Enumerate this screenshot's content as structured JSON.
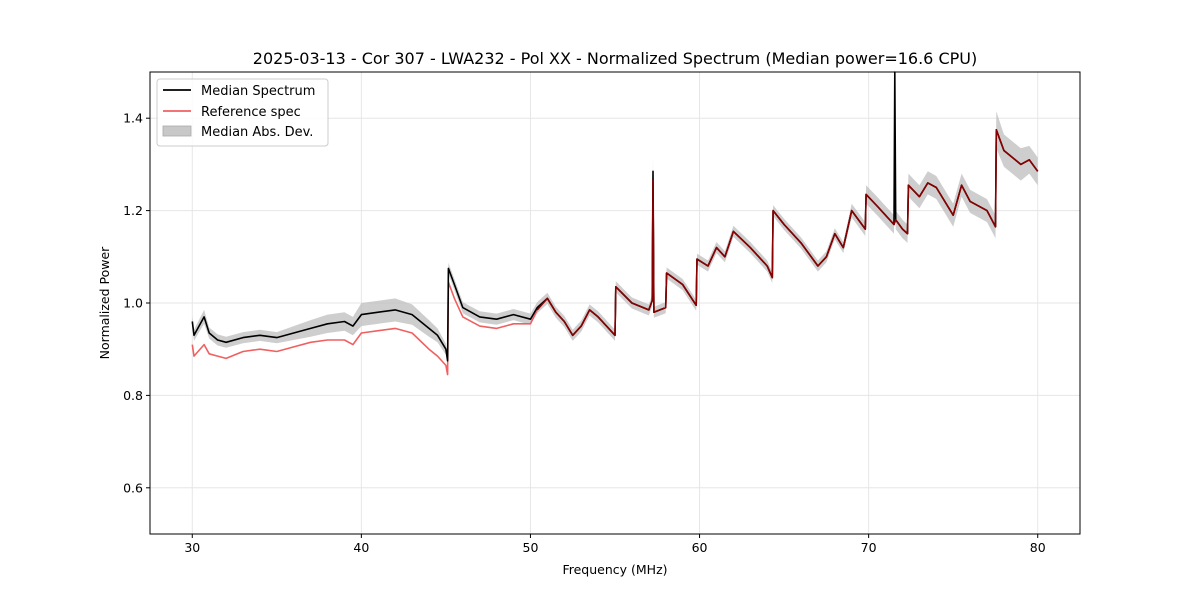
{
  "chart_data": {
    "type": "line",
    "title": "2025-03-13 - Cor 307 - LWA232 - Pol XX - Normalized Spectrum (Median power=16.6 CPU)",
    "xlabel": "Frequency (MHz)",
    "ylabel": "Normalized Power",
    "xlim": [
      27.5,
      82.5
    ],
    "ylim": [
      0.5,
      1.5
    ],
    "xticks": [
      30,
      40,
      50,
      60,
      70,
      80
    ],
    "yticks": [
      0.6,
      0.8,
      1.0,
      1.2,
      1.4
    ],
    "xtick_labels": [
      "30",
      "40",
      "50",
      "60",
      "70",
      "80"
    ],
    "ytick_labels": [
      "0.6",
      "0.8",
      "1.0",
      "1.2",
      "1.4"
    ],
    "grid": true,
    "legend_position": "top-left",
    "colors": {
      "median": "#000000",
      "reference": "#f06060",
      "mad_band": "#bdbdbd"
    },
    "legend": [
      {
        "label": "Median Spectrum",
        "kind": "line",
        "color": "#000000"
      },
      {
        "label": "Reference spec",
        "kind": "line",
        "color": "#f06060"
      },
      {
        "label": "Median Abs. Dev.",
        "kind": "patch",
        "color": "#c8c8c8"
      }
    ],
    "series": [
      {
        "name": "Median Spectrum",
        "x": [
          30.0,
          30.1,
          30.7,
          31.0,
          31.5,
          32.0,
          33.0,
          34.0,
          35.0,
          36.0,
          37.0,
          38.0,
          39.0,
          39.5,
          40.0,
          41.0,
          42.0,
          43.0,
          44.0,
          44.5,
          45.0,
          45.1,
          45.15,
          45.5,
          46.0,
          47.0,
          48.0,
          49.0,
          50.0,
          50.4,
          51.0,
          51.5,
          52.0,
          52.5,
          53.0,
          53.5,
          54.0,
          55.0,
          55.05,
          56.0,
          57.0,
          57.2,
          57.25,
          57.3,
          58.0,
          58.05,
          59.0,
          59.8,
          59.85,
          60.5,
          61.0,
          61.5,
          62.0,
          63.0,
          64.0,
          64.3,
          64.35,
          65.0,
          66.0,
          67.0,
          67.5,
          68.0,
          68.5,
          69.0,
          69.8,
          69.85,
          70.5,
          71.0,
          71.5,
          71.55,
          71.6,
          72.0,
          72.3,
          72.35,
          73.0,
          73.5,
          74.0,
          75.0,
          75.5,
          76.0,
          77.0,
          77.5,
          77.55,
          78.0,
          79.0,
          79.5,
          80.0
        ],
        "y": [
          0.96,
          0.93,
          0.97,
          0.935,
          0.92,
          0.915,
          0.925,
          0.93,
          0.925,
          0.935,
          0.945,
          0.955,
          0.96,
          0.95,
          0.975,
          0.98,
          0.985,
          0.975,
          0.945,
          0.93,
          0.9,
          0.875,
          1.075,
          1.04,
          0.99,
          0.97,
          0.965,
          0.975,
          0.965,
          0.99,
          1.01,
          0.98,
          0.96,
          0.93,
          0.95,
          0.985,
          0.97,
          0.93,
          1.035,
          1.0,
          0.985,
          1.005,
          1.285,
          0.98,
          0.99,
          1.065,
          1.04,
          0.995,
          1.095,
          1.08,
          1.12,
          1.1,
          1.155,
          1.12,
          1.08,
          1.055,
          1.2,
          1.17,
          1.13,
          1.08,
          1.1,
          1.15,
          1.12,
          1.2,
          1.16,
          1.235,
          1.21,
          1.19,
          1.17,
          1.5,
          1.18,
          1.16,
          1.15,
          1.255,
          1.23,
          1.26,
          1.25,
          1.19,
          1.255,
          1.22,
          1.2,
          1.165,
          1.375,
          1.33,
          1.3,
          1.31,
          1.285
        ]
      },
      {
        "name": "Reference spec",
        "x": [
          30.0,
          30.1,
          30.7,
          31.0,
          31.5,
          32.0,
          33.0,
          34.0,
          35.0,
          36.0,
          37.0,
          38.0,
          39.0,
          39.5,
          40.0,
          41.0,
          42.0,
          43.0,
          44.0,
          44.5,
          45.0,
          45.1,
          45.15,
          45.5,
          46.0,
          47.0,
          48.0,
          49.0,
          50.0,
          50.4,
          51.0,
          51.5,
          52.0,
          52.5,
          53.0,
          53.5,
          54.0,
          55.0,
          55.05,
          56.0,
          57.0,
          57.2,
          57.25,
          57.3,
          58.0,
          58.05,
          59.0,
          59.8,
          59.85,
          60.5,
          61.0,
          61.5,
          62.0,
          63.0,
          64.0,
          64.3,
          64.35,
          65.0,
          66.0,
          67.0,
          67.5,
          68.0,
          68.5,
          69.0,
          69.8,
          69.85,
          70.5,
          71.0,
          71.5,
          71.6,
          72.0,
          72.3,
          72.35,
          73.0,
          73.5,
          74.0,
          75.0,
          75.5,
          76.0,
          77.0,
          77.5,
          77.55,
          78.0,
          79.0,
          79.5,
          80.0
        ],
        "y": [
          0.91,
          0.885,
          0.91,
          0.89,
          0.885,
          0.88,
          0.895,
          0.9,
          0.895,
          0.905,
          0.915,
          0.92,
          0.92,
          0.91,
          0.935,
          0.94,
          0.945,
          0.935,
          0.9,
          0.885,
          0.865,
          0.845,
          1.045,
          1.01,
          0.97,
          0.95,
          0.945,
          0.955,
          0.955,
          0.985,
          1.01,
          0.98,
          0.96,
          0.93,
          0.95,
          0.985,
          0.97,
          0.93,
          1.035,
          1.0,
          0.985,
          1.005,
          1.265,
          0.98,
          0.99,
          1.065,
          1.04,
          0.995,
          1.095,
          1.08,
          1.12,
          1.1,
          1.155,
          1.12,
          1.08,
          1.055,
          1.2,
          1.17,
          1.13,
          1.08,
          1.1,
          1.15,
          1.12,
          1.2,
          1.16,
          1.235,
          1.21,
          1.19,
          1.17,
          1.18,
          1.16,
          1.15,
          1.255,
          1.23,
          1.26,
          1.25,
          1.19,
          1.255,
          1.22,
          1.2,
          1.165,
          1.375,
          1.33,
          1.3,
          1.31,
          1.285
        ]
      }
    ],
    "mad_band": {
      "name": "Median Abs. Dev.",
      "half_width": [
        0.012,
        0.012,
        0.015,
        0.012,
        0.012,
        0.012,
        0.012,
        0.012,
        0.012,
        0.015,
        0.018,
        0.02,
        0.02,
        0.02,
        0.025,
        0.025,
        0.025,
        0.022,
        0.018,
        0.015,
        0.012,
        0.012,
        0.012,
        0.012,
        0.012,
        0.012,
        0.012,
        0.012,
        0.012,
        0.012,
        0.012,
        0.012,
        0.012,
        0.012,
        0.012,
        0.012,
        0.012,
        0.012,
        0.012,
        0.012,
        0.012,
        0.012,
        0.035,
        0.012,
        0.012,
        0.012,
        0.012,
        0.012,
        0.012,
        0.012,
        0.012,
        0.012,
        0.012,
        0.012,
        0.012,
        0.012,
        0.012,
        0.012,
        0.012,
        0.012,
        0.012,
        0.012,
        0.012,
        0.015,
        0.015,
        0.02,
        0.02,
        0.02,
        0.02,
        0.02,
        0.02,
        0.02,
        0.02,
        0.025,
        0.025,
        0.025,
        0.025,
        0.025,
        0.025,
        0.025,
        0.025,
        0.025,
        0.04,
        0.035,
        0.035,
        0.03,
        0.03
      ]
    }
  }
}
